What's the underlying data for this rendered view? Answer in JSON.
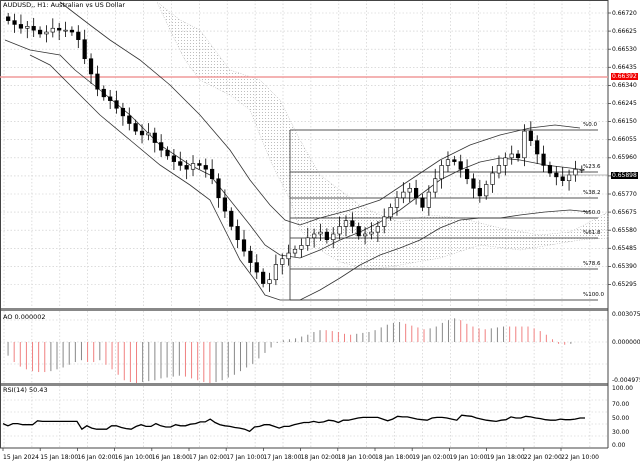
{
  "window": {
    "title": "AUDUSD,, H1:  Australian vs US Dollar"
  },
  "colors": {
    "bull_bar": "#888888",
    "bear_bar": "#f08080",
    "resistance": "#f19a9a",
    "price_tag_bg": "#f00000",
    "current_tag_bg": "#000000"
  },
  "chart_data": [
    {
      "type": "candlestick",
      "title": "AUDUSD,, H1:  Australian vs US Dollar",
      "symbol": "AUDUSD",
      "timeframe": "H1",
      "ylim": [
        0.6624,
        0.6677
      ],
      "y_ticks": [
        "0.66720",
        "0.66625",
        "0.66530",
        "0.66435",
        "0.66340",
        "0.66245",
        "0.66150",
        "0.66055",
        "0.65960",
        "0.65865",
        "0.65770",
        "0.65675",
        "0.65580",
        "0.65485",
        "0.65390",
        "0.65295"
      ],
      "x_ticks": [
        "15 Jan 2024",
        "15 Jan 18:00",
        "16 Jan 02:00",
        "16 Jan 10:00",
        "16 Jan 18:00",
        "17 Jan 02:00",
        "17 Jan 10:00",
        "17 Jan 18:00",
        "18 Jan 02:00",
        "18 Jan 10:00",
        "18 Jan 18:00",
        "19 Jan 02:00",
        "19 Jan 10:00",
        "19 Jan 18:00",
        "22 Jan 02:00",
        "22 Jan 10:00"
      ],
      "horizontal_line": {
        "value": "0.66392",
        "color": "#f19a9a"
      },
      "current_price": "0.65898",
      "fibonacci": [
        {
          "label": "%0.0",
          "value": 0.6615
        },
        {
          "label": "%23.6",
          "value": 0.6591
        },
        {
          "label": "%38.2",
          "value": 0.6577
        },
        {
          "label": "%50.0",
          "value": 0.6566
        },
        {
          "label": "%61.8",
          "value": 0.6555
        },
        {
          "label": "%78.6",
          "value": 0.6538
        },
        {
          "label": "%100.0",
          "value": 0.6517
        }
      ],
      "indicators": [
        "Bollinger Bands",
        "Ichimoku Cloud",
        "Fibonacci Retracement"
      ],
      "close_approx": [
        0.6668,
        0.6666,
        0.6664,
        0.6665,
        0.6663,
        0.6661,
        0.6662,
        0.6664,
        0.6663,
        0.6663,
        0.6662,
        0.6658,
        0.6648,
        0.664,
        0.6632,
        0.6628,
        0.6626,
        0.6622,
        0.6618,
        0.6614,
        0.661,
        0.6608,
        0.6609,
        0.6604,
        0.66,
        0.6597,
        0.6594,
        0.6592,
        0.659,
        0.6593,
        0.6592,
        0.659,
        0.6585,
        0.6575,
        0.6568,
        0.656,
        0.6553,
        0.6547,
        0.6541,
        0.6536,
        0.653,
        0.6532,
        0.654,
        0.6543,
        0.6546,
        0.6548,
        0.655,
        0.6554,
        0.6556,
        0.6557,
        0.6553,
        0.6556,
        0.656,
        0.6563,
        0.656,
        0.6555,
        0.6556,
        0.6557,
        0.656,
        0.6565,
        0.657,
        0.6575,
        0.6578,
        0.658,
        0.6575,
        0.657,
        0.6578,
        0.6585,
        0.6592,
        0.6595,
        0.6594,
        0.659,
        0.6585,
        0.658,
        0.6576,
        0.6582,
        0.6588,
        0.6592,
        0.6596,
        0.6598,
        0.6596,
        0.661,
        0.6605,
        0.6598,
        0.6592,
        0.6588,
        0.6586,
        0.6584,
        0.6587,
        0.659,
        0.659
      ]
    },
    {
      "type": "bar",
      "title": "AO 0.000002",
      "name": "Awesome Oscillator",
      "value": "0.000002",
      "y_ticks": [
        "0.003075",
        "0.000000",
        "-0.004975"
      ],
      "ylim": [
        -0.004975,
        0.003075
      ],
      "values": [
        -0.0015,
        -0.0022,
        -0.0027,
        -0.003,
        -0.0032,
        -0.0033,
        -0.0033,
        -0.0032,
        -0.003,
        -0.0028,
        -0.0025,
        -0.0022,
        -0.002,
        -0.0022,
        -0.0022,
        -0.002,
        -0.0025,
        -0.003,
        -0.0036,
        -0.0042,
        -0.0044,
        -0.0045,
        -0.0044,
        -0.0043,
        -0.0042,
        -0.004,
        -0.0039,
        -0.0038,
        -0.0037,
        -0.0038,
        -0.004,
        -0.0042,
        -0.0044,
        -0.0045,
        -0.0044,
        -0.0042,
        -0.0039,
        -0.0036,
        -0.0032,
        -0.0028,
        -0.0024,
        -0.0018,
        -0.0012,
        -0.0006,
        -0.0001,
        0.0002,
        0.0003,
        0.0004,
        0.0006,
        0.0008,
        0.0011,
        0.0013,
        0.0013,
        0.0012,
        0.0011,
        0.0009,
        0.0008,
        0.0009,
        0.001,
        0.0011,
        0.0013,
        0.0016,
        0.0019,
        0.0021,
        0.0022,
        0.002,
        0.0018,
        0.0016,
        0.0014,
        0.0015,
        0.0017,
        0.0021,
        0.0024,
        0.0026,
        0.0024,
        0.002,
        0.0017,
        0.0015,
        0.0014,
        0.0015,
        0.0016,
        0.0017,
        0.0017,
        0.0017,
        0.0017,
        0.0017,
        0.0015,
        0.0012,
        0.0008,
        0.0003,
        -0.0002,
        -0.0003,
        -0.0002,
        0.0
      ]
    },
    {
      "type": "line",
      "title": "RSI(14) 50.43",
      "name": "RSI(14)",
      "value": "50.43",
      "y_ticks": [
        "100.00",
        "70.00",
        "50.00",
        "30.00",
        "0.00"
      ],
      "ylim": [
        0,
        100
      ],
      "values": [
        40,
        36,
        40,
        40,
        38,
        38,
        38,
        45,
        44,
        44,
        44,
        44,
        44,
        44,
        44,
        44,
        30,
        36,
        32,
        30,
        30,
        30,
        36,
        36,
        33,
        31,
        30,
        35,
        38,
        35,
        35,
        40,
        36,
        34,
        34,
        38,
        36,
        36,
        39,
        40,
        43,
        43,
        48,
        42,
        38,
        36,
        35,
        33,
        32,
        30,
        26,
        34,
        35,
        38,
        38,
        35,
        32,
        35,
        35,
        38,
        40,
        42,
        42,
        44,
        42,
        43,
        46,
        45,
        42,
        46,
        46,
        48,
        50,
        51,
        51,
        51,
        51,
        48,
        45,
        48,
        53,
        52,
        52,
        50,
        48,
        47,
        46,
        50,
        51,
        51,
        50,
        48,
        46,
        55,
        54,
        53,
        50,
        48,
        46,
        45,
        44,
        46,
        47,
        52,
        50,
        50,
        53,
        52,
        50,
        49,
        47,
        46,
        46,
        48,
        47,
        47,
        48,
        50,
        50
      ]
    }
  ],
  "price_axis": {
    "labels": [
      "0.66720",
      "0.66625",
      "0.66530",
      "0.66435",
      "0.66340",
      "0.66245",
      "0.66150",
      "0.66055",
      "0.65960",
      "0.65865",
      "0.65770",
      "0.65675",
      "0.65580",
      "0.65485",
      "0.65390",
      "0.65295"
    ],
    "hline_tag": "0.66392",
    "current_tag": "0.65898"
  },
  "ao_axis": {
    "labels": [
      "0.003075",
      "0.000000",
      "-0.004975"
    ]
  },
  "rsi_axis": {
    "labels": [
      "100.00",
      "70.00",
      "50.00",
      "30.00",
      "0.00"
    ]
  },
  "time_axis": {
    "labels": [
      "15 Jan 2024",
      "15 Jan 18:00",
      "16 Jan 02:00",
      "16 Jan 10:00",
      "16 Jan 18:00",
      "17 Jan 02:00",
      "17 Jan 10:00",
      "17 Jan 18:00",
      "18 Jan 02:00",
      "18 Jan 10:00",
      "18 Jan 18:00",
      "19 Jan 02:00",
      "19 Jan 10:00",
      "19 Jan 18:00",
      "22 Jan 02:00",
      "22 Jan 10:00"
    ]
  },
  "panels": {
    "main_title": "AUDUSD,, H1:  Australian vs US Dollar",
    "ao_title": "AO 0.000002",
    "rsi_title": "RSI(14) 50.43"
  },
  "fib_labels": [
    "%0.0",
    "%23.6",
    "%38.2",
    "%50.0",
    "%61.8",
    "%78.6",
    "%100.0"
  ]
}
